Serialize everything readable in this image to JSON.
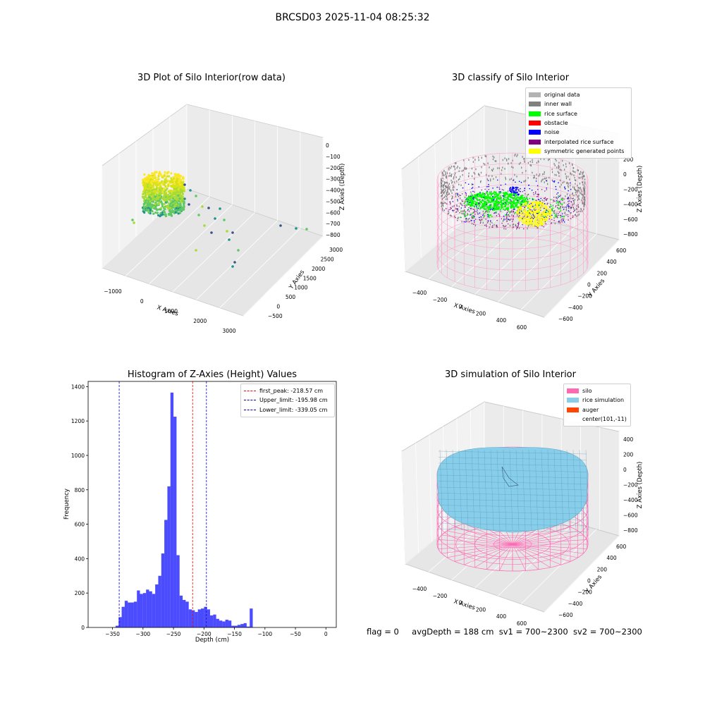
{
  "figure": {
    "title": "BRCSD03 2025-11-04 08:25:32",
    "footer": {
      "flag": "flag = 0",
      "avg_depth": "avgDepth = 188 cm",
      "sv1": "sv1 = 700~2300",
      "sv2": "sv2 = 700~2300"
    }
  },
  "chart_data": [
    {
      "type": "scatter3d",
      "title": "3D Plot of Silo Interior(row data)",
      "xlabel": "X Axies",
      "ylabel": "Y Axies",
      "zlabel": "Z Axies (Depth)",
      "x_ticks": [
        "−1000",
        "0",
        "1000",
        "2000",
        "3000"
      ],
      "y_ticks": [
        "−500",
        "0",
        "500",
        "1000",
        "1500",
        "2000",
        "2500",
        "3000"
      ],
      "z_ticks": [
        "0",
        "−100",
        "−200",
        "−300",
        "−400",
        "−500",
        "−600",
        "−700",
        "−800"
      ],
      "colormap": "viridis"
    },
    {
      "type": "scatter3d",
      "title": "3D classify of Silo Interior",
      "xlabel": "X Axies",
      "ylabel": "Y Axies",
      "zlabel": "Z Axies (Depth)",
      "x_ticks": [
        "−400",
        "−200",
        "0",
        "200",
        "400",
        "600"
      ],
      "y_ticks": [
        "−600",
        "−400",
        "−200",
        "0",
        "200",
        "400",
        "600"
      ],
      "z_ticks": [
        "200",
        "0",
        "−200",
        "−400",
        "−600",
        "−800"
      ],
      "legend": [
        {
          "label": "original data",
          "color": "#b3b3b3"
        },
        {
          "label": "inner wall",
          "color": "#808080"
        },
        {
          "label": "rice surface",
          "color": "#00ff00"
        },
        {
          "label": "obstacle",
          "color": "#ff0000"
        },
        {
          "label": "noise",
          "color": "#0000ff"
        },
        {
          "label": "interpolated rice surface",
          "color": "#800080"
        },
        {
          "label": "symmetric generated points",
          "color": "#ffff00"
        }
      ]
    },
    {
      "type": "bar",
      "title": "Histogram of Z-Axies (Height) Values",
      "xlabel": "Depth (cm)",
      "ylabel": "Frequency",
      "xlim": [
        -390,
        17
      ],
      "ylim": [
        0,
        1430
      ],
      "x_ticks": [
        -350,
        -300,
        -250,
        -200,
        -150,
        -100,
        -50,
        0
      ],
      "x_tick_labels": [
        "−350",
        "−300",
        "−250",
        "−200",
        "−150",
        "−100",
        "−50",
        "0"
      ],
      "y_ticks": [
        0,
        200,
        400,
        600,
        800,
        1000,
        1200,
        1400
      ],
      "bar_color": "#0000ff",
      "bin_width": 5,
      "bin_start": -345,
      "values": [
        10,
        60,
        120,
        155,
        145,
        145,
        150,
        215,
        195,
        200,
        220,
        210,
        195,
        250,
        300,
        430,
        625,
        820,
        1365,
        1225,
        420,
        185,
        160,
        150,
        105,
        100,
        90,
        105,
        110,
        120,
        105,
        70,
        75,
        50,
        40,
        35,
        45,
        40,
        10,
        10,
        15,
        20,
        25,
        5,
        110
      ],
      "vlines": [
        {
          "label": "first_peak: -218.57 cm",
          "x": -218.57,
          "color": "#ff0000"
        },
        {
          "label": "Upper_limit: -195.98 cm",
          "x": -195.98,
          "color": "#0000cc"
        },
        {
          "label": "Lower_limit: -339.05 cm",
          "x": -339.05,
          "color": "#0000cc"
        }
      ]
    },
    {
      "type": "surface3d",
      "title": "3D simulation of Silo Interior",
      "xlabel": "X Axies",
      "ylabel": "Y Axies",
      "zlabel": "Z Axies (Depth)",
      "x_ticks": [
        "−400",
        "−200",
        "0",
        "200",
        "400",
        "600"
      ],
      "y_ticks": [
        "−600",
        "−400",
        "−200",
        "0",
        "200",
        "400",
        "600"
      ],
      "z_ticks": [
        "400",
        "200",
        "0",
        "−200",
        "−400",
        "−600",
        "−800"
      ],
      "legend": [
        {
          "label": "silo",
          "color": "#ff69b4"
        },
        {
          "label": "rice simulation",
          "color": "#87ceeb"
        },
        {
          "label": "auger",
          "color": "#ff4500"
        },
        {
          "label": "center(101,-11)",
          "color": "#ffffff"
        }
      ]
    }
  ]
}
